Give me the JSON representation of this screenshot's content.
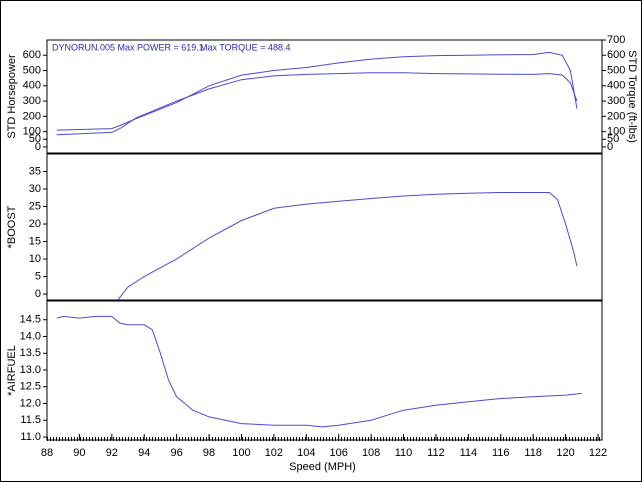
{
  "chart_data": [
    {
      "type": "line",
      "ylabel": "STD Horsepower",
      "y2label": "STD Torque (ft-lbs)",
      "annotations": [
        "DYNORUN.005  Max POWER = 619.1",
        "Max TORQUE = 488.4"
      ],
      "x": [
        88.6,
        92,
        92.5,
        93.5,
        96,
        98,
        100,
        102,
        104,
        106,
        108,
        110,
        112,
        114,
        116,
        118,
        119,
        119.8,
        120.3,
        120.7
      ],
      "series": [
        {
          "name": "STD Horsepower",
          "color": "#4b4bd6",
          "values": [
            110,
            120,
            140,
            185,
            290,
            400,
            470,
            500,
            520,
            550,
            575,
            590,
            598,
            600,
            603,
            605,
            619,
            600,
            500,
            250
          ]
        },
        {
          "name": "STD Torque",
          "color": "#4b4bd6",
          "axis": "y2",
          "values": [
            80,
            95,
            120,
            190,
            300,
            380,
            440,
            465,
            475,
            480,
            485,
            485,
            480,
            478,
            476,
            475,
            480,
            470,
            420,
            300
          ]
        }
      ],
      "xlim": [
        88,
        122
      ],
      "ylim": [
        -40,
        700
      ],
      "yticks": [
        0,
        50,
        100,
        200,
        300,
        400,
        500,
        600
      ],
      "y2lim": [
        -40,
        700
      ],
      "y2ticks": [
        0,
        50,
        100,
        200,
        300,
        400,
        500,
        600,
        700
      ]
    },
    {
      "type": "line",
      "ylabel": "*BOOST",
      "x": [
        92.4,
        93,
        94,
        96,
        98,
        100,
        102,
        104,
        106,
        108,
        110,
        112,
        114,
        116,
        118,
        119,
        119.5,
        120,
        120.5,
        120.7
      ],
      "series": [
        {
          "name": "*BOOST",
          "color": "#4b4bd6",
          "values": [
            -1.5,
            2,
            5,
            10,
            16,
            21,
            24.5,
            25.7,
            26.5,
            27.3,
            28,
            28.5,
            28.8,
            29,
            29,
            29,
            27,
            20,
            12,
            8
          ]
        }
      ],
      "xlim": [
        88,
        122
      ],
      "ylim": [
        -1.7,
        40
      ],
      "yticks": [
        0,
        5,
        10,
        15,
        20,
        25,
        30,
        35
      ]
    },
    {
      "type": "line",
      "ylabel": "*AIRFUEL",
      "xlabel": "Speed (MPH)",
      "x": [
        88.6,
        89,
        90,
        91,
        92,
        92.5,
        93,
        94,
        94.5,
        95,
        95.5,
        96,
        97,
        98,
        100,
        102,
        104,
        105,
        106,
        108,
        110,
        112,
        114,
        116,
        118,
        120,
        121
      ],
      "series": [
        {
          "name": "*AIRFUEL",
          "color": "#4b4bd6",
          "values": [
            14.55,
            14.6,
            14.55,
            14.6,
            14.6,
            14.4,
            14.35,
            14.35,
            14.2,
            13.5,
            12.7,
            12.2,
            11.8,
            11.6,
            11.4,
            11.35,
            11.35,
            11.3,
            11.35,
            11.5,
            11.8,
            11.95,
            12.05,
            12.15,
            12.2,
            12.25,
            12.3
          ]
        }
      ],
      "xlim": [
        88,
        122
      ],
      "ylim": [
        10.91,
        15.06
      ],
      "yticks": [
        {
          "value": 11,
          "label": "11.0"
        },
        11.5,
        {
          "value": 12,
          "label": "12.0"
        },
        12.5,
        {
          "value": 13,
          "label": "13.0"
        },
        13.5,
        {
          "value": 14,
          "label": "14.0"
        },
        14.5
      ],
      "xticks": [
        88,
        90,
        92,
        94,
        96,
        98,
        100,
        102,
        104,
        106,
        108,
        110,
        112,
        114,
        116,
        118,
        120,
        122
      ]
    }
  ]
}
